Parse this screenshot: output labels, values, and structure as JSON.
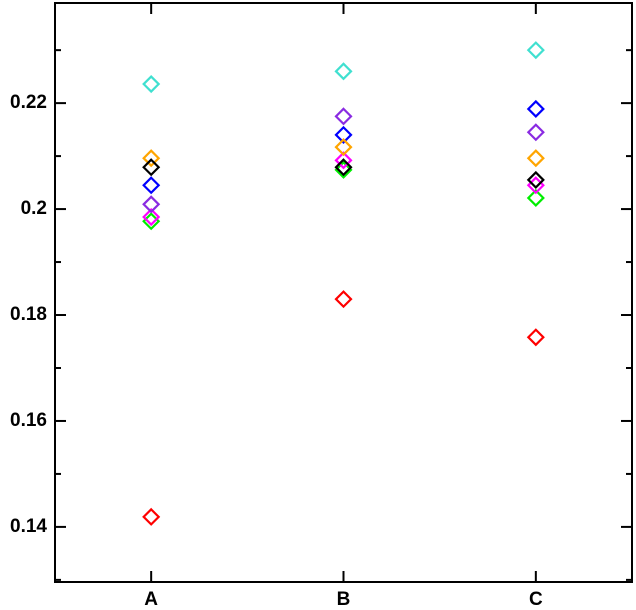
{
  "chart_data": {
    "type": "scatter",
    "categories": [
      "A",
      "B",
      "C"
    ],
    "series": [
      {
        "color": "#ff0000",
        "values": [
          0.1419,
          0.183,
          0.1758
        ]
      },
      {
        "color": "#00ee00",
        "values": [
          0.1977,
          0.2074,
          0.2021
        ]
      },
      {
        "color": "#ff00ff",
        "values": [
          0.1985,
          0.2092,
          0.2045
        ]
      },
      {
        "color": "#8a2be2",
        "values": [
          0.2009,
          0.2175,
          0.2145
        ]
      },
      {
        "color": "#0000ff",
        "values": [
          0.2045,
          0.214,
          0.2189
        ]
      },
      {
        "color": "#ffa500",
        "values": [
          0.2096,
          0.2117,
          0.2096
        ]
      },
      {
        "color": "#000000",
        "values": [
          0.2079,
          0.2079,
          0.2055
        ]
      },
      {
        "color": "#40e0d0",
        "values": [
          0.2236,
          0.226,
          0.23
        ]
      }
    ],
    "ylim": [
      0.1296,
      0.2389
    ],
    "yticks": [
      0.14,
      0.16,
      0.18,
      0.2,
      0.22
    ],
    "minor_yticks": [
      0.13,
      0.15,
      0.17,
      0.19,
      0.21,
      0.23
    ],
    "marker": "diamond"
  }
}
